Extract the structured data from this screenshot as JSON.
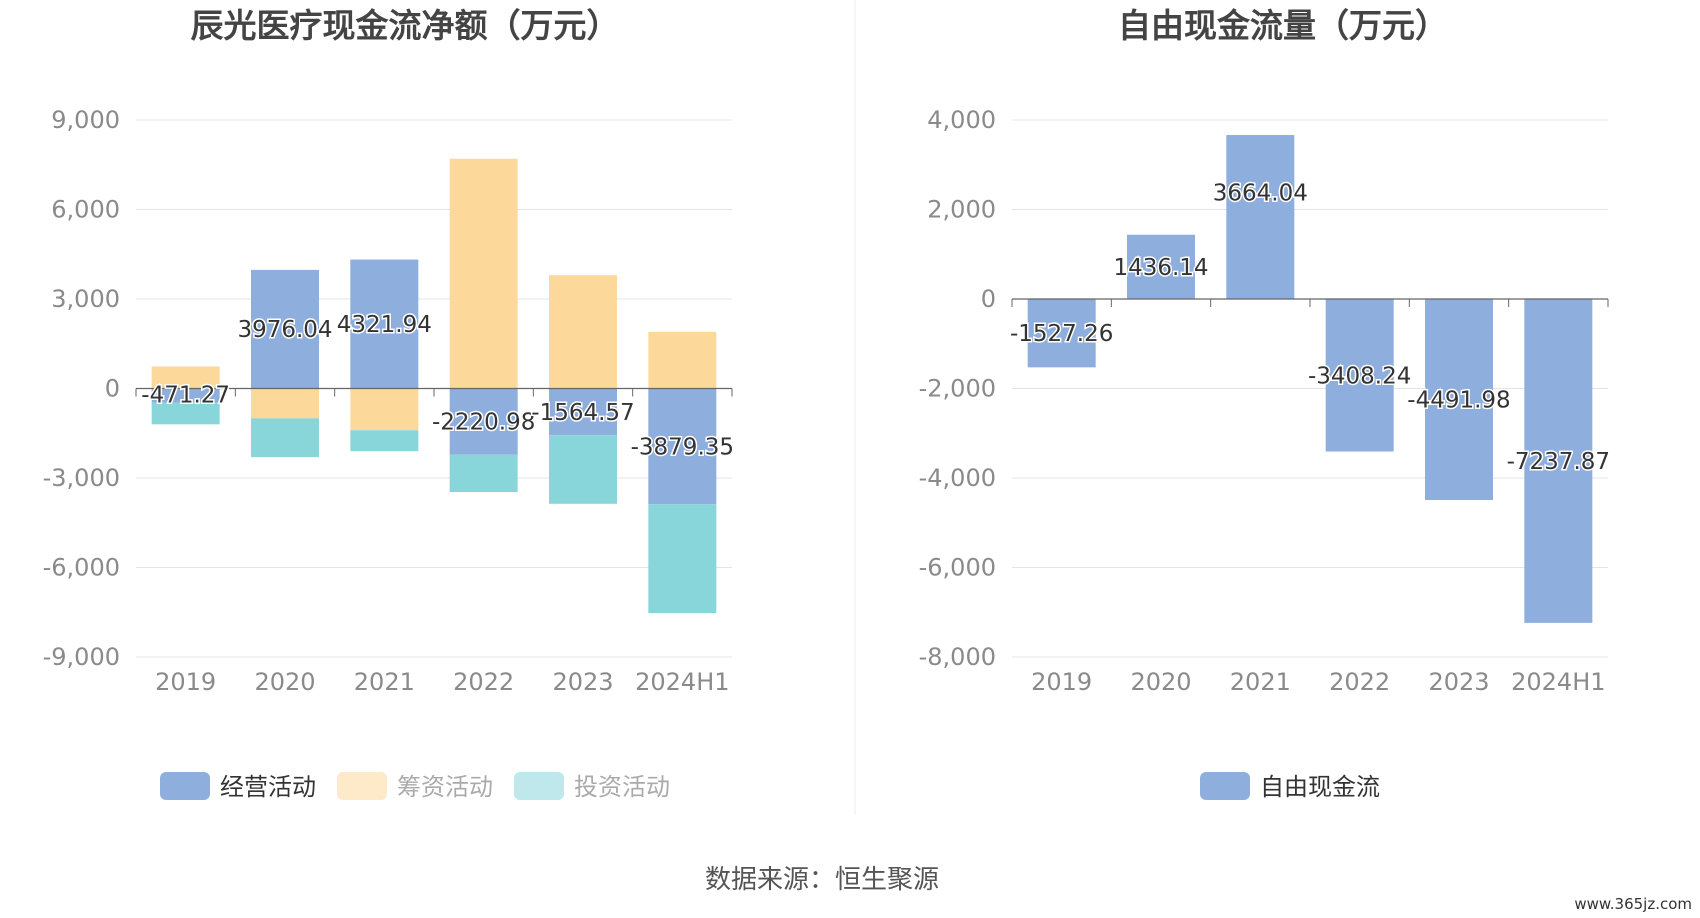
{
  "source_text": "数据来源：恒生聚源",
  "watermark": "www.365jz.com",
  "chart_data": [
    {
      "type": "bar",
      "stacked": true,
      "title": "辰光医疗现金流净额（万元）",
      "categories": [
        "2019",
        "2020",
        "2021",
        "2022",
        "2023",
        "2024H1"
      ],
      "ylim": [
        -9000,
        9000
      ],
      "yticks": [
        9000,
        6000,
        3000,
        0,
        -3000,
        -6000,
        -9000
      ],
      "ytick_labels": [
        "9,000",
        "6,000",
        "3,000",
        "0",
        "-3,000",
        "-6,000",
        "-9,000"
      ],
      "grid": true,
      "legend_position": "bottom",
      "series": [
        {
          "name": "经营活动",
          "color": "#8eaedd",
          "values": [
            -471.27,
            3976.04,
            4321.94,
            -2220.98,
            -1564.57,
            -3879.35
          ],
          "labels": [
            "-471.27",
            "3976.04",
            "4321.94",
            "-2220.98",
            "-1564.57",
            "-3879.35"
          ],
          "legend_active": true
        },
        {
          "name": "筹资活动",
          "color": "#fdd89b",
          "values": [
            740,
            -1000,
            -1400,
            7700,
            3800,
            1900
          ],
          "legend_active": false
        },
        {
          "name": "投资活动",
          "color": "#88d6da",
          "values": [
            -730,
            -1300,
            -700,
            -1250,
            -2300,
            -3650
          ],
          "legend_active": false
        }
      ]
    },
    {
      "type": "bar",
      "title": "自由现金流量（万元）",
      "categories": [
        "2019",
        "2020",
        "2021",
        "2022",
        "2023",
        "2024H1"
      ],
      "ylim": [
        -8000,
        4000
      ],
      "yticks": [
        4000,
        2000,
        0,
        -2000,
        -4000,
        -6000,
        -8000
      ],
      "ytick_labels": [
        "4,000",
        "2,000",
        "0",
        "-2,000",
        "-4,000",
        "-6,000",
        "-8,000"
      ],
      "grid": true,
      "legend_position": "bottom",
      "series": [
        {
          "name": "自由现金流",
          "color": "#8eaedd",
          "values": [
            -1527.26,
            1436.14,
            3664.04,
            -3408.24,
            -4491.98,
            -7237.87
          ],
          "labels": [
            "-1527.26",
            "1436.14",
            "3664.04",
            "-3408.24",
            "-4491.98",
            "-7237.87"
          ],
          "legend_active": true
        }
      ]
    }
  ]
}
